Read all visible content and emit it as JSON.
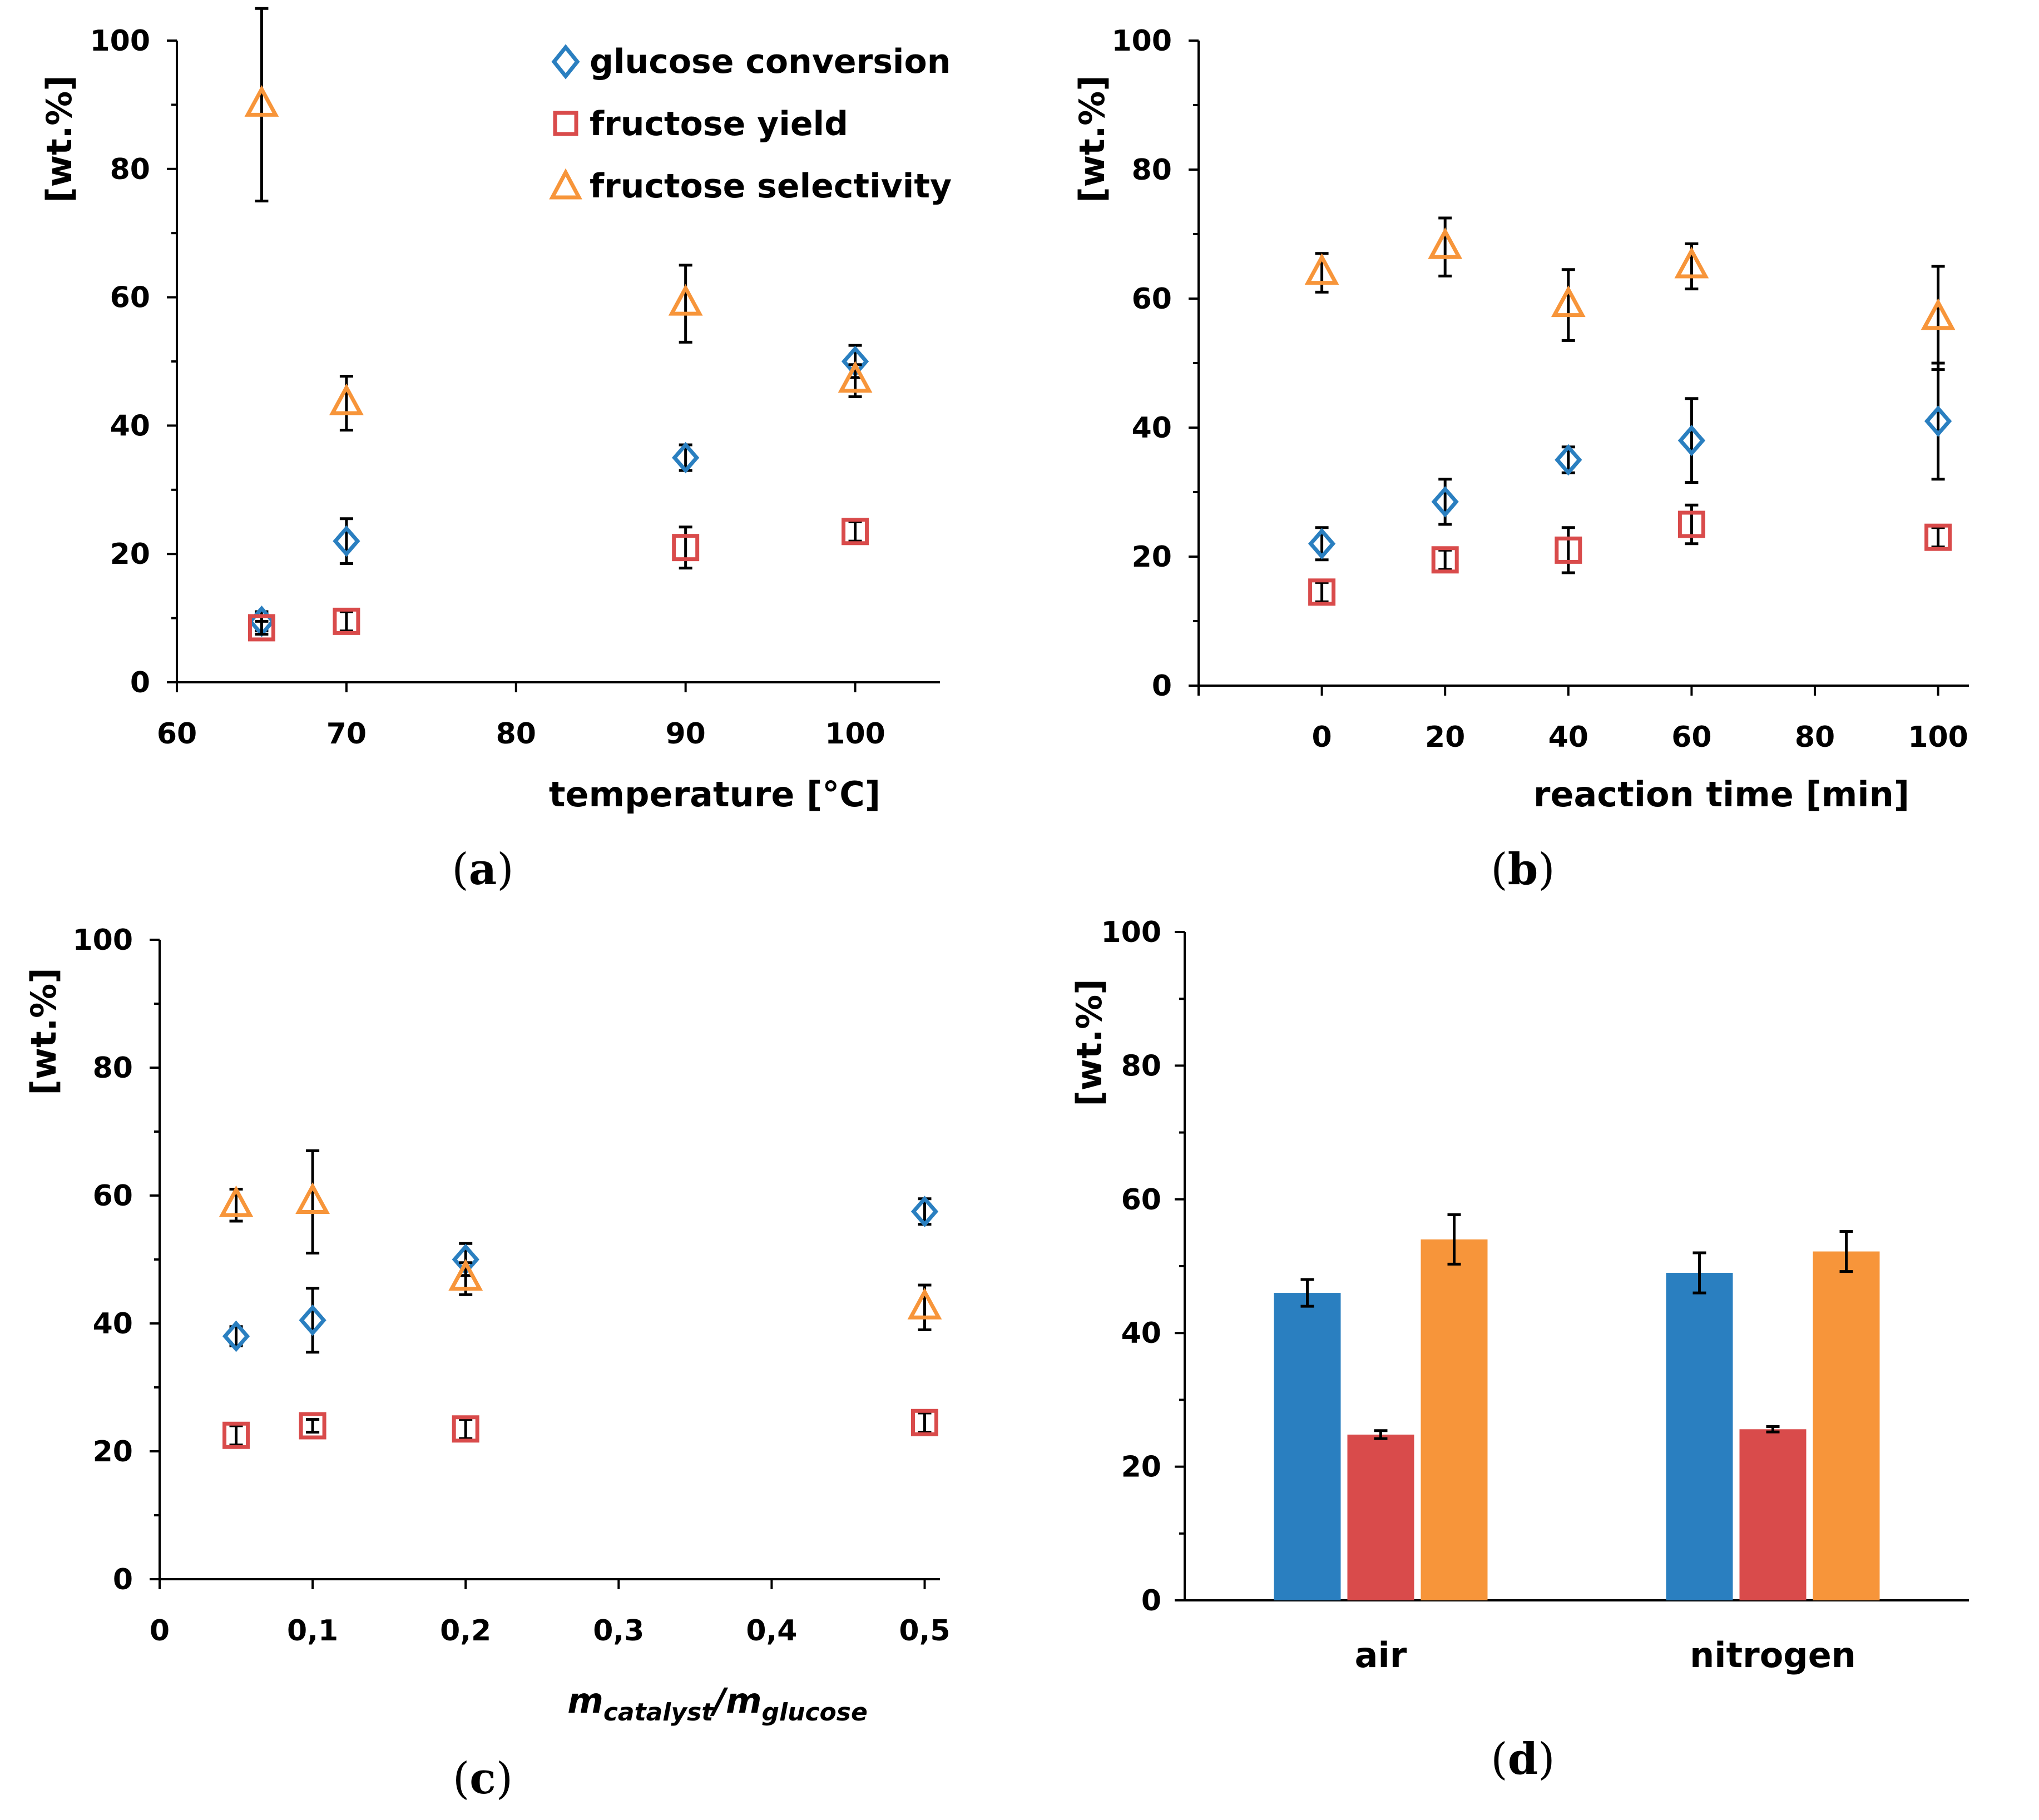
{
  "colors": {
    "glucose_conversion": "#2a7fc0",
    "fructose_yield": "#d94b4b",
    "fructose_selectivity": "#f7953a"
  },
  "chart_data": [
    {
      "panel": "a",
      "type": "scatter",
      "xlabel": "temperature  [°C]",
      "ylabel": "[wt.%]",
      "xlim": [
        60,
        105
      ],
      "ylim": [
        0,
        100
      ],
      "xticks": [
        60,
        70,
        80,
        90,
        100
      ],
      "yticks": [
        0,
        20,
        40,
        60,
        80,
        100
      ],
      "legend": {
        "position": "top-right",
        "items": [
          {
            "name": "glucose conversion",
            "marker": "diamond",
            "color": "#2a7fc0"
          },
          {
            "name": "fructose yield",
            "marker": "square",
            "color": "#d94b4b"
          },
          {
            "name": "fructose selectivity",
            "marker": "triangle",
            "color": "#f7953a"
          }
        ]
      },
      "series": [
        {
          "name": "glucose conversion",
          "marker": "diamond",
          "color": "#2a7fc0",
          "x": [
            65,
            70,
            90,
            100
          ],
          "y": [
            9.5,
            22,
            35,
            50
          ],
          "err": [
            1.5,
            3.5,
            2,
            2.5
          ]
        },
        {
          "name": "fructose yield",
          "marker": "square",
          "color": "#d94b4b",
          "x": [
            65,
            70,
            90,
            100
          ],
          "y": [
            8.5,
            9.5,
            21,
            23.5
          ],
          "err": [
            1,
            1.5,
            3.2,
            1.5
          ]
        },
        {
          "name": "fructose selectivity",
          "marker": "triangle",
          "color": "#f7953a",
          "x": [
            65,
            70,
            90,
            100
          ],
          "y": [
            90,
            43.5,
            59,
            47
          ],
          "err": [
            15,
            4.2,
            6,
            2.5
          ]
        }
      ]
    },
    {
      "panel": "b",
      "type": "scatter",
      "xlabel": "reaction time  [min]",
      "ylabel": "[wt.%]",
      "xlim": [
        -20,
        105
      ],
      "ylim": [
        0,
        100
      ],
      "xticks": [
        0,
        20,
        40,
        60,
        80,
        100
      ],
      "yticks": [
        0,
        20,
        40,
        60,
        80,
        100
      ],
      "series": [
        {
          "name": "glucose conversion",
          "marker": "diamond",
          "color": "#2a7fc0",
          "x": [
            0,
            20,
            40,
            60,
            100
          ],
          "y": [
            22,
            28.5,
            35,
            38,
            41
          ],
          "err": [
            2.5,
            3.5,
            2,
            6.5,
            9
          ]
        },
        {
          "name": "fructose yield",
          "marker": "square",
          "color": "#d94b4b",
          "x": [
            0,
            20,
            40,
            60,
            100
          ],
          "y": [
            14.5,
            19.5,
            21,
            25,
            23
          ],
          "err": [
            1.5,
            1.5,
            3.5,
            3,
            1.5
          ]
        },
        {
          "name": "fructose selectivity",
          "marker": "triangle",
          "color": "#f7953a",
          "x": [
            0,
            20,
            40,
            60,
            100
          ],
          "y": [
            64,
            68,
            59,
            65,
            57
          ],
          "err": [
            3,
            4.5,
            5.5,
            3.5,
            8
          ]
        }
      ]
    },
    {
      "panel": "c",
      "type": "scatter",
      "xlabel_main": "m",
      "xlabel_sub1": "catalyst",
      "xlabel_sep": "/m",
      "xlabel_sub2": "glucose",
      "ylabel": "[wt.%]",
      "xlim": [
        0,
        0.51
      ],
      "ylim": [
        0,
        100
      ],
      "xticks": [
        0,
        0.1,
        0.2,
        0.3,
        0.4,
        0.5
      ],
      "xtick_labels": [
        "0",
        "0,1",
        "0,2",
        "0,3",
        "0,4",
        "0,5"
      ],
      "yticks": [
        0,
        20,
        40,
        60,
        80,
        100
      ],
      "series": [
        {
          "name": "glucose conversion",
          "marker": "diamond",
          "color": "#2a7fc0",
          "x": [
            0.05,
            0.1,
            0.2,
            0.5
          ],
          "y": [
            38,
            40.5,
            50,
            57.5
          ],
          "err": [
            1.5,
            5,
            2.5,
            2
          ]
        },
        {
          "name": "fructose yield",
          "marker": "square",
          "color": "#d94b4b",
          "x": [
            0.05,
            0.1,
            0.2,
            0.5
          ],
          "y": [
            22.5,
            24,
            23.5,
            24.5
          ],
          "err": [
            1.5,
            1,
            1.5,
            1.5
          ]
        },
        {
          "name": "fructose selectivity",
          "marker": "triangle",
          "color": "#f7953a",
          "x": [
            0.05,
            0.1,
            0.2,
            0.5
          ],
          "y": [
            58.5,
            59,
            47,
            42.5
          ],
          "err": [
            2.5,
            8,
            2.5,
            3.5
          ]
        }
      ]
    },
    {
      "panel": "d",
      "type": "bar",
      "categories": [
        "air",
        "nitrogen"
      ],
      "ylabel": "[wt.%]",
      "ylim": [
        0,
        100
      ],
      "yticks": [
        0,
        20,
        40,
        60,
        80,
        100
      ],
      "series": [
        {
          "name": "glucose conversion",
          "color": "#2a7fc0",
          "values": [
            46,
            49
          ],
          "err": [
            2,
            3
          ]
        },
        {
          "name": "fructose yield",
          "color": "#d94b4b",
          "values": [
            24.8,
            25.6
          ],
          "err": [
            0.6,
            0.4
          ]
        },
        {
          "name": "fructose selectivity",
          "color": "#f7953a",
          "values": [
            54,
            52.2
          ],
          "err": [
            3.7,
            3
          ]
        }
      ]
    }
  ],
  "panel_labels": {
    "a": {
      "open": "(",
      "letter": "a",
      "close": ")"
    },
    "b": {
      "open": "(",
      "letter": "b",
      "close": ")"
    },
    "c": {
      "open": "(",
      "letter": "c",
      "close": ")"
    },
    "d": {
      "open": "(",
      "letter": "d",
      "close": ")"
    }
  }
}
